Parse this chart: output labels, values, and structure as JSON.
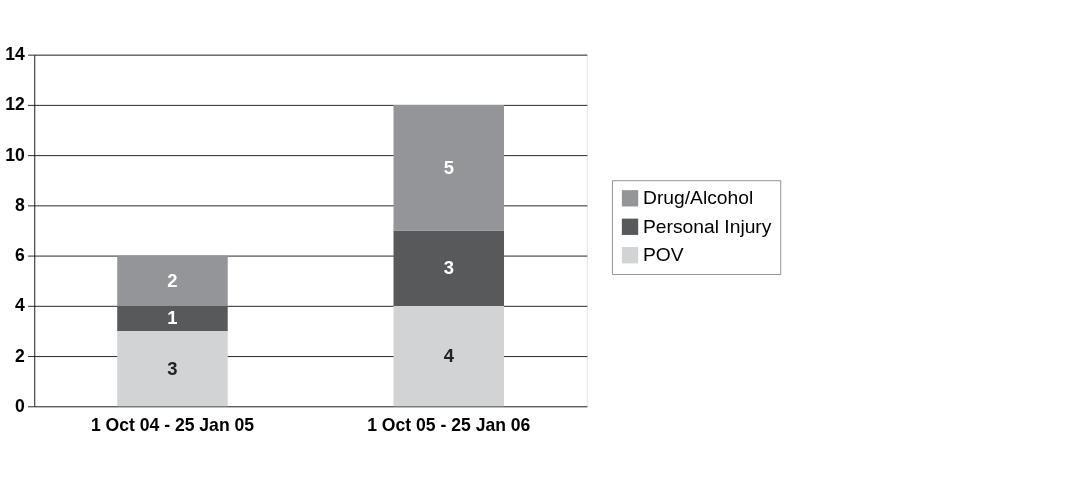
{
  "chart_data": {
    "type": "bar",
    "stacked": true,
    "categories": [
      "1 Oct 04 - 25 Jan 05",
      "1 Oct 05 - 25 Jan 06"
    ],
    "series": [
      {
        "name": "POV",
        "color": "#d2d3d5",
        "values": [
          3,
          4
        ]
      },
      {
        "name": "Personal Injury",
        "color": "#58595b",
        "values": [
          1,
          3
        ]
      },
      {
        "name": "Drug/Alcohol",
        "color": "#939598",
        "values": [
          2,
          5
        ]
      }
    ],
    "ylim": [
      0,
      14
    ],
    "yticks": [
      0,
      2,
      4,
      6,
      8,
      10,
      12,
      14
    ],
    "grid": "y",
    "legend": "right",
    "data_labels": true
  }
}
